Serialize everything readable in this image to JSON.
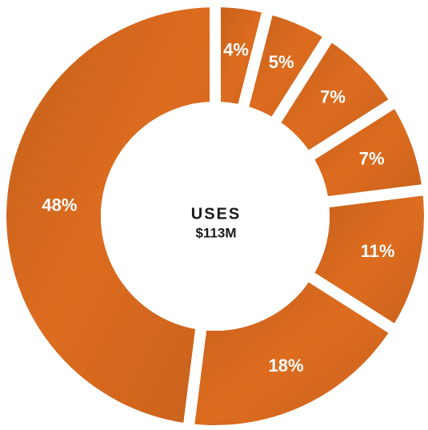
{
  "chart_data": {
    "type": "donut",
    "title": "USES",
    "subtitle": "$113M",
    "values": [
      4,
      5,
      7,
      7,
      11,
      18,
      48
    ],
    "value_labels": [
      "4%",
      "5%",
      "7%",
      "7%",
      "11%",
      "18%",
      "48%"
    ],
    "color": "#dd6c1f"
  }
}
